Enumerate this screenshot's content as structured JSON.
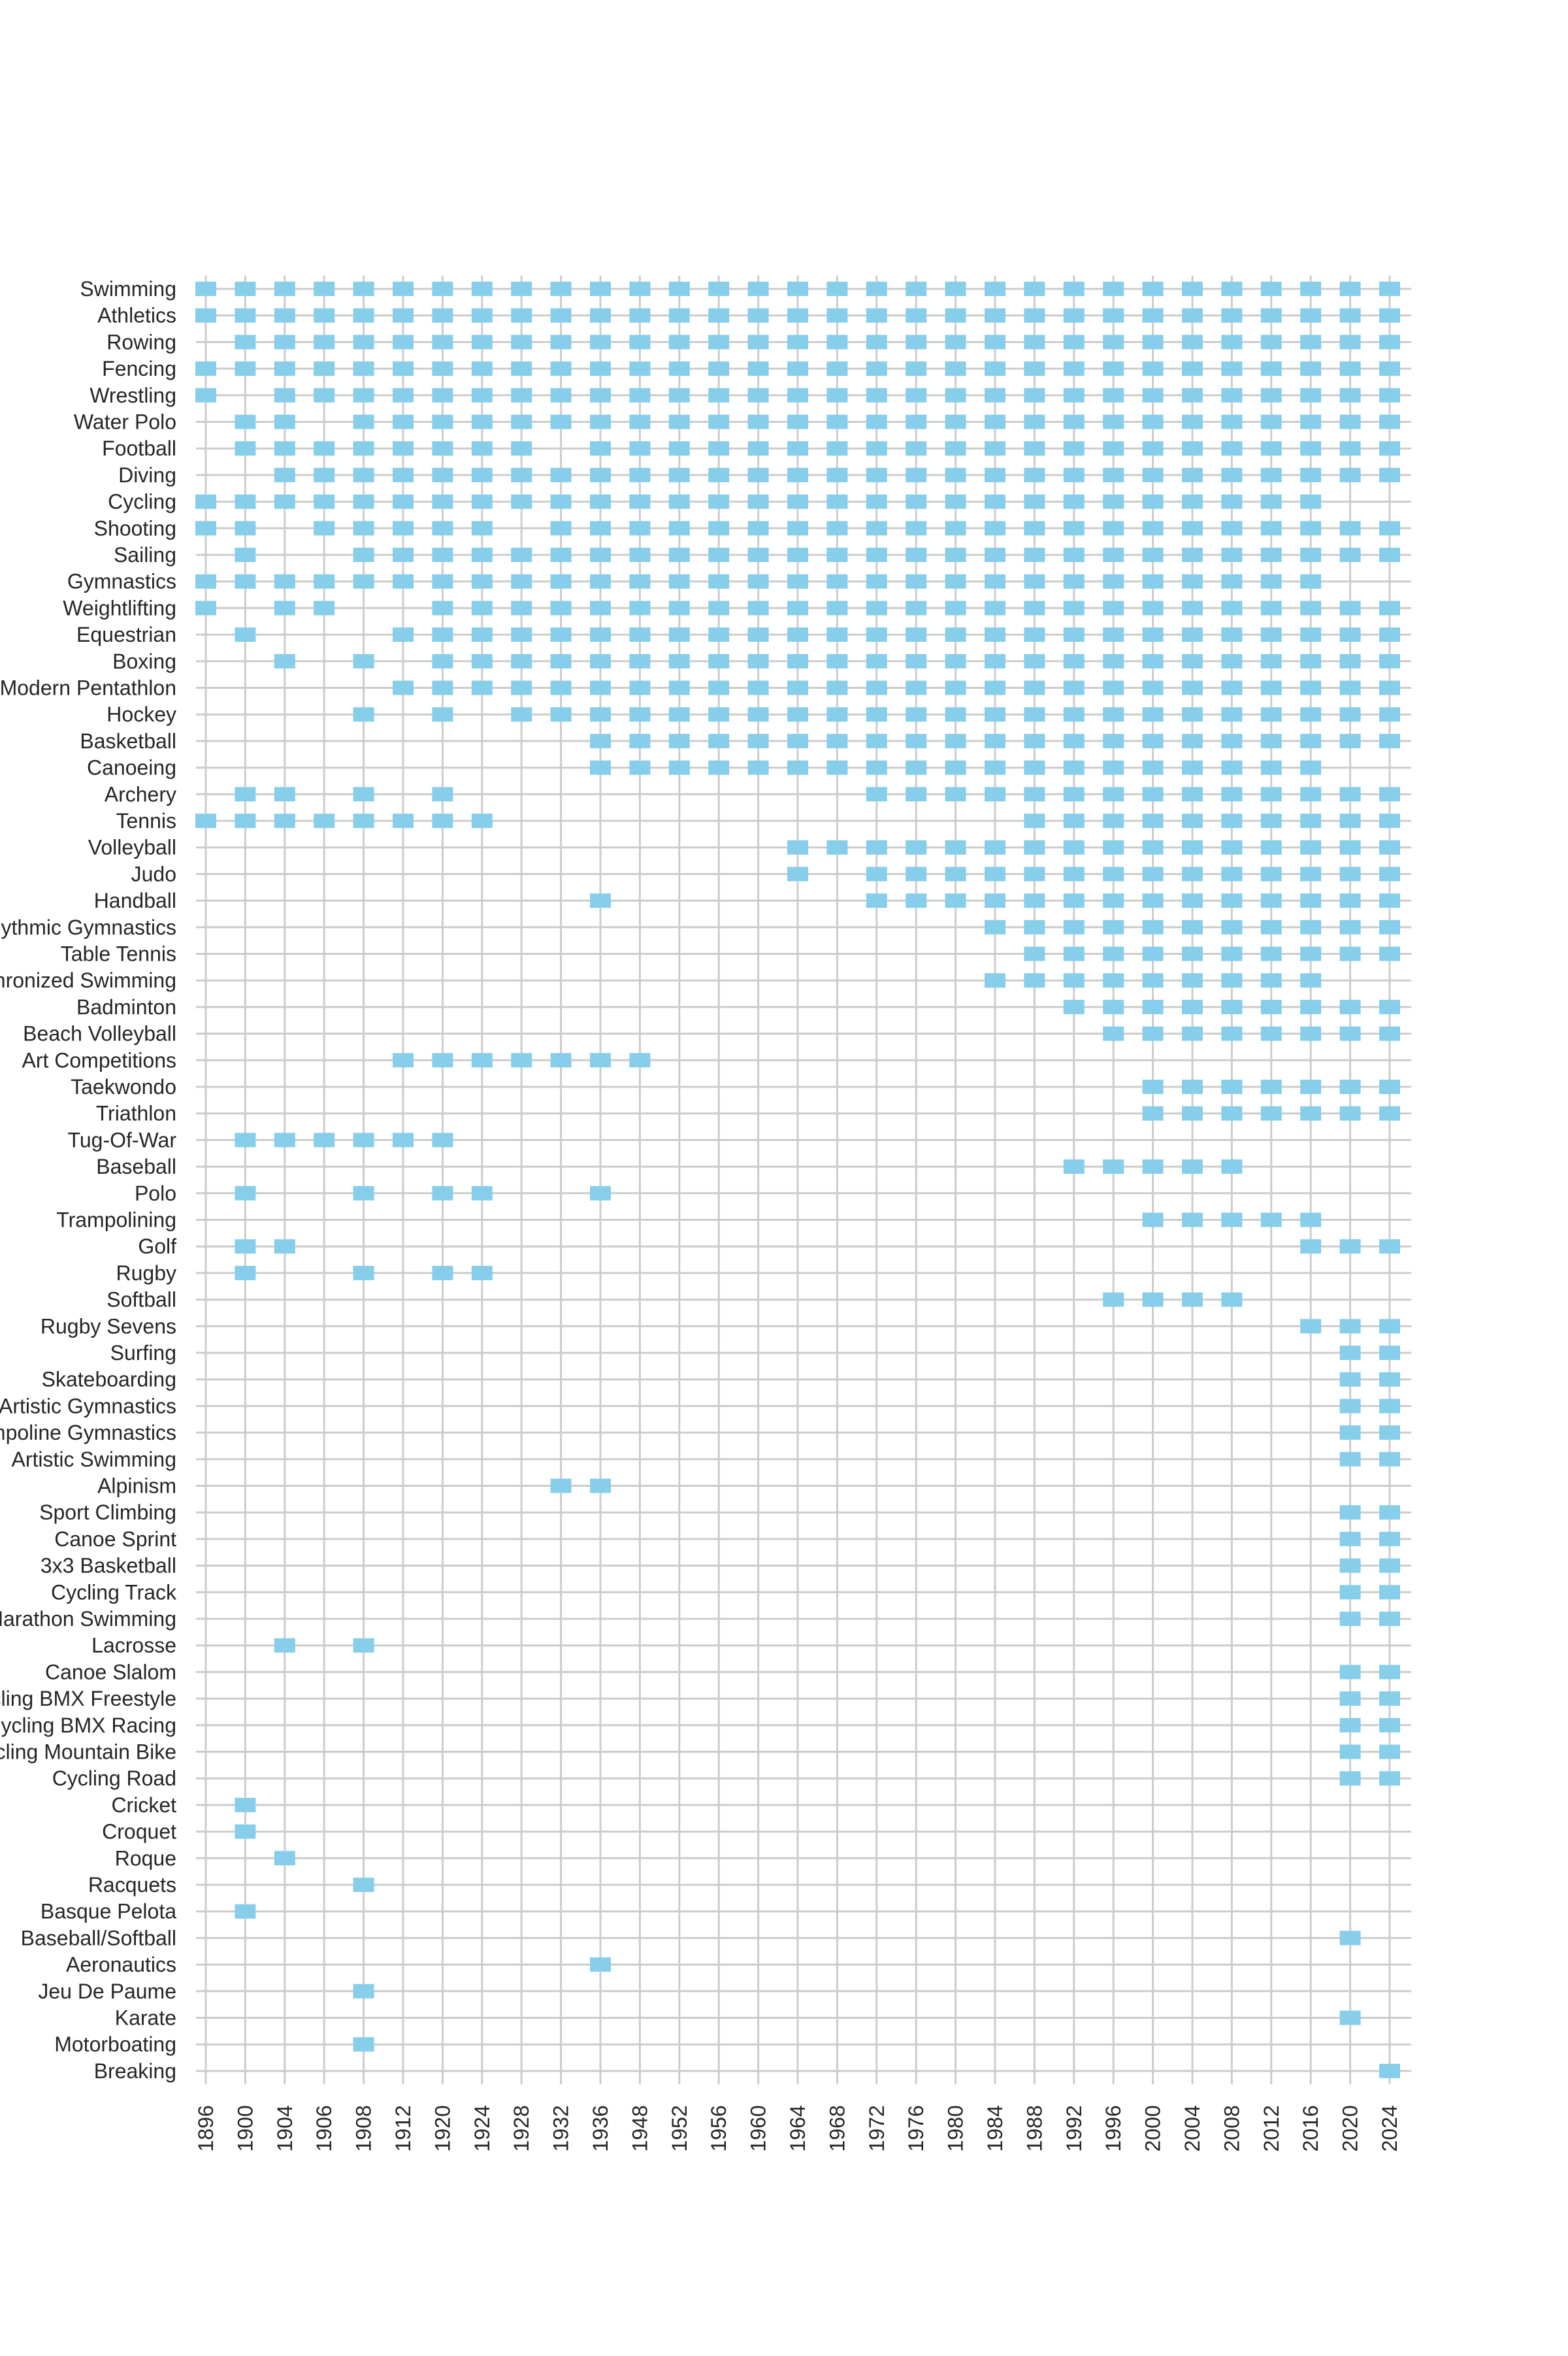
{
  "chart_data": {
    "type": "heatmap",
    "title": "",
    "xlabel": "",
    "ylabel": "",
    "grid": true,
    "legend": "none",
    "mark_color": "#87ceeb",
    "grid_color": "#cccccc",
    "years": [
      "1896",
      "1900",
      "1904",
      "1906",
      "1908",
      "1912",
      "1920",
      "1924",
      "1928",
      "1932",
      "1936",
      "1948",
      "1952",
      "1956",
      "1960",
      "1964",
      "1968",
      "1972",
      "1976",
      "1980",
      "1984",
      "1988",
      "1992",
      "1996",
      "2000",
      "2004",
      "2008",
      "2012",
      "2016",
      "2020",
      "2024"
    ],
    "sports": [
      {
        "name": "Swimming",
        "years": [
          "1896",
          "1900",
          "1904",
          "1906",
          "1908",
          "1912",
          "1920",
          "1924",
          "1928",
          "1932",
          "1936",
          "1948",
          "1952",
          "1956",
          "1960",
          "1964",
          "1968",
          "1972",
          "1976",
          "1980",
          "1984",
          "1988",
          "1992",
          "1996",
          "2000",
          "2004",
          "2008",
          "2012",
          "2016",
          "2020",
          "2024"
        ]
      },
      {
        "name": "Athletics",
        "years": [
          "1896",
          "1900",
          "1904",
          "1906",
          "1908",
          "1912",
          "1920",
          "1924",
          "1928",
          "1932",
          "1936",
          "1948",
          "1952",
          "1956",
          "1960",
          "1964",
          "1968",
          "1972",
          "1976",
          "1980",
          "1984",
          "1988",
          "1992",
          "1996",
          "2000",
          "2004",
          "2008",
          "2012",
          "2016",
          "2020",
          "2024"
        ]
      },
      {
        "name": "Rowing",
        "years": [
          "1900",
          "1904",
          "1906",
          "1908",
          "1912",
          "1920",
          "1924",
          "1928",
          "1932",
          "1936",
          "1948",
          "1952",
          "1956",
          "1960",
          "1964",
          "1968",
          "1972",
          "1976",
          "1980",
          "1984",
          "1988",
          "1992",
          "1996",
          "2000",
          "2004",
          "2008",
          "2012",
          "2016",
          "2020",
          "2024"
        ]
      },
      {
        "name": "Fencing",
        "years": [
          "1896",
          "1900",
          "1904",
          "1906",
          "1908",
          "1912",
          "1920",
          "1924",
          "1928",
          "1932",
          "1936",
          "1948",
          "1952",
          "1956",
          "1960",
          "1964",
          "1968",
          "1972",
          "1976",
          "1980",
          "1984",
          "1988",
          "1992",
          "1996",
          "2000",
          "2004",
          "2008",
          "2012",
          "2016",
          "2020",
          "2024"
        ]
      },
      {
        "name": "Wrestling",
        "years": [
          "1896",
          "1904",
          "1906",
          "1908",
          "1912",
          "1920",
          "1924",
          "1928",
          "1932",
          "1936",
          "1948",
          "1952",
          "1956",
          "1960",
          "1964",
          "1968",
          "1972",
          "1976",
          "1980",
          "1984",
          "1988",
          "1992",
          "1996",
          "2000",
          "2004",
          "2008",
          "2012",
          "2016",
          "2020",
          "2024"
        ]
      },
      {
        "name": "Water Polo",
        "years": [
          "1900",
          "1904",
          "1908",
          "1912",
          "1920",
          "1924",
          "1928",
          "1932",
          "1936",
          "1948",
          "1952",
          "1956",
          "1960",
          "1964",
          "1968",
          "1972",
          "1976",
          "1980",
          "1984",
          "1988",
          "1992",
          "1996",
          "2000",
          "2004",
          "2008",
          "2012",
          "2016",
          "2020",
          "2024"
        ]
      },
      {
        "name": "Football",
        "years": [
          "1900",
          "1904",
          "1906",
          "1908",
          "1912",
          "1920",
          "1924",
          "1928",
          "1936",
          "1948",
          "1952",
          "1956",
          "1960",
          "1964",
          "1968",
          "1972",
          "1976",
          "1980",
          "1984",
          "1988",
          "1992",
          "1996",
          "2000",
          "2004",
          "2008",
          "2012",
          "2016",
          "2020",
          "2024"
        ]
      },
      {
        "name": "Diving",
        "years": [
          "1904",
          "1906",
          "1908",
          "1912",
          "1920",
          "1924",
          "1928",
          "1932",
          "1936",
          "1948",
          "1952",
          "1956",
          "1960",
          "1964",
          "1968",
          "1972",
          "1976",
          "1980",
          "1984",
          "1988",
          "1992",
          "1996",
          "2000",
          "2004",
          "2008",
          "2012",
          "2016",
          "2020",
          "2024"
        ]
      },
      {
        "name": "Cycling",
        "years": [
          "1896",
          "1900",
          "1904",
          "1906",
          "1908",
          "1912",
          "1920",
          "1924",
          "1928",
          "1932",
          "1936",
          "1948",
          "1952",
          "1956",
          "1960",
          "1964",
          "1968",
          "1972",
          "1976",
          "1980",
          "1984",
          "1988",
          "1992",
          "1996",
          "2000",
          "2004",
          "2008",
          "2012",
          "2016"
        ]
      },
      {
        "name": "Shooting",
        "years": [
          "1896",
          "1900",
          "1906",
          "1908",
          "1912",
          "1920",
          "1924",
          "1932",
          "1936",
          "1948",
          "1952",
          "1956",
          "1960",
          "1964",
          "1968",
          "1972",
          "1976",
          "1980",
          "1984",
          "1988",
          "1992",
          "1996",
          "2000",
          "2004",
          "2008",
          "2012",
          "2016",
          "2020",
          "2024"
        ]
      },
      {
        "name": "Sailing",
        "years": [
          "1900",
          "1908",
          "1912",
          "1920",
          "1924",
          "1928",
          "1932",
          "1936",
          "1948",
          "1952",
          "1956",
          "1960",
          "1964",
          "1968",
          "1972",
          "1976",
          "1980",
          "1984",
          "1988",
          "1992",
          "1996",
          "2000",
          "2004",
          "2008",
          "2012",
          "2016",
          "2020",
          "2024"
        ]
      },
      {
        "name": "Gymnastics",
        "years": [
          "1896",
          "1900",
          "1904",
          "1906",
          "1908",
          "1912",
          "1920",
          "1924",
          "1928",
          "1932",
          "1936",
          "1948",
          "1952",
          "1956",
          "1960",
          "1964",
          "1968",
          "1972",
          "1976",
          "1980",
          "1984",
          "1988",
          "1992",
          "1996",
          "2000",
          "2004",
          "2008",
          "2012",
          "2016"
        ]
      },
      {
        "name": "Weightlifting",
        "years": [
          "1896",
          "1904",
          "1906",
          "1920",
          "1924",
          "1928",
          "1932",
          "1936",
          "1948",
          "1952",
          "1956",
          "1960",
          "1964",
          "1968",
          "1972",
          "1976",
          "1980",
          "1984",
          "1988",
          "1992",
          "1996",
          "2000",
          "2004",
          "2008",
          "2012",
          "2016",
          "2020",
          "2024"
        ]
      },
      {
        "name": "Equestrian",
        "years": [
          "1900",
          "1912",
          "1920",
          "1924",
          "1928",
          "1932",
          "1936",
          "1948",
          "1952",
          "1956",
          "1960",
          "1964",
          "1968",
          "1972",
          "1976",
          "1980",
          "1984",
          "1988",
          "1992",
          "1996",
          "2000",
          "2004",
          "2008",
          "2012",
          "2016",
          "2020",
          "2024"
        ]
      },
      {
        "name": "Boxing",
        "years": [
          "1904",
          "1908",
          "1920",
          "1924",
          "1928",
          "1932",
          "1936",
          "1948",
          "1952",
          "1956",
          "1960",
          "1964",
          "1968",
          "1972",
          "1976",
          "1980",
          "1984",
          "1988",
          "1992",
          "1996",
          "2000",
          "2004",
          "2008",
          "2012",
          "2016",
          "2020",
          "2024"
        ]
      },
      {
        "name": "Modern Pentathlon",
        "years": [
          "1912",
          "1920",
          "1924",
          "1928",
          "1932",
          "1936",
          "1948",
          "1952",
          "1956",
          "1960",
          "1964",
          "1968",
          "1972",
          "1976",
          "1980",
          "1984",
          "1988",
          "1992",
          "1996",
          "2000",
          "2004",
          "2008",
          "2012",
          "2016",
          "2020",
          "2024"
        ]
      },
      {
        "name": "Hockey",
        "years": [
          "1908",
          "1920",
          "1928",
          "1932",
          "1936",
          "1948",
          "1952",
          "1956",
          "1960",
          "1964",
          "1968",
          "1972",
          "1976",
          "1980",
          "1984",
          "1988",
          "1992",
          "1996",
          "2000",
          "2004",
          "2008",
          "2012",
          "2016",
          "2020",
          "2024"
        ]
      },
      {
        "name": "Basketball",
        "years": [
          "1936",
          "1948",
          "1952",
          "1956",
          "1960",
          "1964",
          "1968",
          "1972",
          "1976",
          "1980",
          "1984",
          "1988",
          "1992",
          "1996",
          "2000",
          "2004",
          "2008",
          "2012",
          "2016",
          "2020",
          "2024"
        ]
      },
      {
        "name": "Canoeing",
        "years": [
          "1936",
          "1948",
          "1952",
          "1956",
          "1960",
          "1964",
          "1968",
          "1972",
          "1976",
          "1980",
          "1984",
          "1988",
          "1992",
          "1996",
          "2000",
          "2004",
          "2008",
          "2012",
          "2016"
        ]
      },
      {
        "name": "Archery",
        "years": [
          "1900",
          "1904",
          "1908",
          "1920",
          "1972",
          "1976",
          "1980",
          "1984",
          "1988",
          "1992",
          "1996",
          "2000",
          "2004",
          "2008",
          "2012",
          "2016",
          "2020",
          "2024"
        ]
      },
      {
        "name": "Tennis",
        "years": [
          "1896",
          "1900",
          "1904",
          "1906",
          "1908",
          "1912",
          "1920",
          "1924",
          "1988",
          "1992",
          "1996",
          "2000",
          "2004",
          "2008",
          "2012",
          "2016",
          "2020",
          "2024"
        ]
      },
      {
        "name": "Volleyball",
        "years": [
          "1964",
          "1968",
          "1972",
          "1976",
          "1980",
          "1984",
          "1988",
          "1992",
          "1996",
          "2000",
          "2004",
          "2008",
          "2012",
          "2016",
          "2020",
          "2024"
        ]
      },
      {
        "name": "Judo",
        "years": [
          "1964",
          "1972",
          "1976",
          "1980",
          "1984",
          "1988",
          "1992",
          "1996",
          "2000",
          "2004",
          "2008",
          "2012",
          "2016",
          "2020",
          "2024"
        ]
      },
      {
        "name": "Handball",
        "years": [
          "1936",
          "1972",
          "1976",
          "1980",
          "1984",
          "1988",
          "1992",
          "1996",
          "2000",
          "2004",
          "2008",
          "2012",
          "2016",
          "2020",
          "2024"
        ]
      },
      {
        "name": "Rhythmic Gymnastics",
        "years": [
          "1984",
          "1988",
          "1992",
          "1996",
          "2000",
          "2004",
          "2008",
          "2012",
          "2016",
          "2020",
          "2024"
        ]
      },
      {
        "name": "Table Tennis",
        "years": [
          "1988",
          "1992",
          "1996",
          "2000",
          "2004",
          "2008",
          "2012",
          "2016",
          "2020",
          "2024"
        ]
      },
      {
        "name": "Synchronized Swimming",
        "years": [
          "1984",
          "1988",
          "1992",
          "1996",
          "2000",
          "2004",
          "2008",
          "2012",
          "2016"
        ]
      },
      {
        "name": "Badminton",
        "years": [
          "1992",
          "1996",
          "2000",
          "2004",
          "2008",
          "2012",
          "2016",
          "2020",
          "2024"
        ]
      },
      {
        "name": "Beach Volleyball",
        "years": [
          "1996",
          "2000",
          "2004",
          "2008",
          "2012",
          "2016",
          "2020",
          "2024"
        ]
      },
      {
        "name": "Art Competitions",
        "years": [
          "1912",
          "1920",
          "1924",
          "1928",
          "1932",
          "1936",
          "1948"
        ]
      },
      {
        "name": "Taekwondo",
        "years": [
          "2000",
          "2004",
          "2008",
          "2012",
          "2016",
          "2020",
          "2024"
        ]
      },
      {
        "name": "Triathlon",
        "years": [
          "2000",
          "2004",
          "2008",
          "2012",
          "2016",
          "2020",
          "2024"
        ]
      },
      {
        "name": "Tug-Of-War",
        "years": [
          "1900",
          "1904",
          "1906",
          "1908",
          "1912",
          "1920"
        ]
      },
      {
        "name": "Baseball",
        "years": [
          "1992",
          "1996",
          "2000",
          "2004",
          "2008"
        ]
      },
      {
        "name": "Polo",
        "years": [
          "1900",
          "1908",
          "1920",
          "1924",
          "1936"
        ]
      },
      {
        "name": "Trampolining",
        "years": [
          "2000",
          "2004",
          "2008",
          "2012",
          "2016"
        ]
      },
      {
        "name": "Golf",
        "years": [
          "1900",
          "1904",
          "2016",
          "2020",
          "2024"
        ]
      },
      {
        "name": "Rugby",
        "years": [
          "1900",
          "1908",
          "1920",
          "1924"
        ]
      },
      {
        "name": "Softball",
        "years": [
          "1996",
          "2000",
          "2004",
          "2008"
        ]
      },
      {
        "name": "Rugby Sevens",
        "years": [
          "2016",
          "2020",
          "2024"
        ]
      },
      {
        "name": "Surfing",
        "years": [
          "2020",
          "2024"
        ]
      },
      {
        "name": "Skateboarding",
        "years": [
          "2020",
          "2024"
        ]
      },
      {
        "name": "Artistic Gymnastics",
        "years": [
          "2020",
          "2024"
        ]
      },
      {
        "name": "Trampoline Gymnastics",
        "years": [
          "2020",
          "2024"
        ]
      },
      {
        "name": "Artistic Swimming",
        "years": [
          "2020",
          "2024"
        ]
      },
      {
        "name": "Alpinism",
        "years": [
          "1932",
          "1936"
        ]
      },
      {
        "name": "Sport Climbing",
        "years": [
          "2020",
          "2024"
        ]
      },
      {
        "name": "Canoe Sprint",
        "years": [
          "2020",
          "2024"
        ]
      },
      {
        "name": "3x3 Basketball",
        "years": [
          "2020",
          "2024"
        ]
      },
      {
        "name": "Cycling Track",
        "years": [
          "2020",
          "2024"
        ]
      },
      {
        "name": "Marathon Swimming",
        "years": [
          "2020",
          "2024"
        ]
      },
      {
        "name": "Lacrosse",
        "years": [
          "1904",
          "1908"
        ]
      },
      {
        "name": "Canoe Slalom",
        "years": [
          "2020",
          "2024"
        ]
      },
      {
        "name": "Cycling BMX Freestyle",
        "years": [
          "2020",
          "2024"
        ]
      },
      {
        "name": "Cycling BMX Racing",
        "years": [
          "2020",
          "2024"
        ]
      },
      {
        "name": "Cycling Mountain Bike",
        "years": [
          "2020",
          "2024"
        ]
      },
      {
        "name": "Cycling Road",
        "years": [
          "2020",
          "2024"
        ]
      },
      {
        "name": "Cricket",
        "years": [
          "1900"
        ]
      },
      {
        "name": "Croquet",
        "years": [
          "1900"
        ]
      },
      {
        "name": "Roque",
        "years": [
          "1904"
        ]
      },
      {
        "name": "Racquets",
        "years": [
          "1908"
        ]
      },
      {
        "name": "Basque Pelota",
        "years": [
          "1900"
        ]
      },
      {
        "name": "Baseball/Softball",
        "years": [
          "2020"
        ]
      },
      {
        "name": "Aeronautics",
        "years": [
          "1936"
        ]
      },
      {
        "name": "Jeu De Paume",
        "years": [
          "1908"
        ]
      },
      {
        "name": "Karate",
        "years": [
          "2020"
        ]
      },
      {
        "name": "Motorboating",
        "years": [
          "1908"
        ]
      },
      {
        "name": "Breaking",
        "years": [
          "2024"
        ]
      }
    ]
  }
}
